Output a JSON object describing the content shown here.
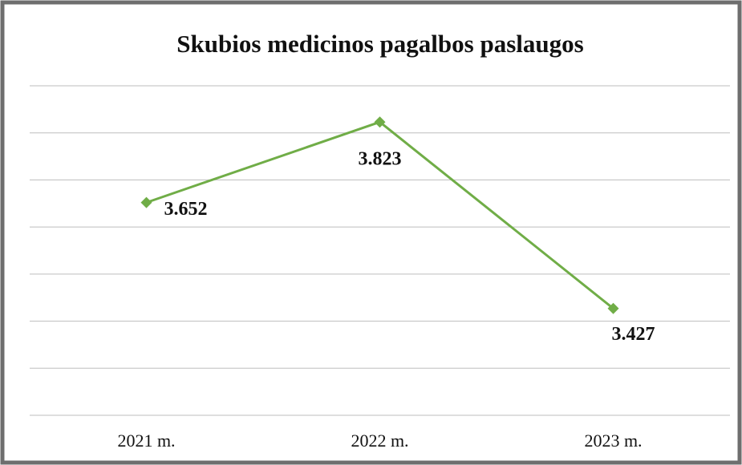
{
  "chart_data": {
    "type": "line",
    "title": "Skubios medicinos pagalbos paslaugos",
    "categories": [
      "2021 m.",
      "2022 m.",
      "2023 m."
    ],
    "series": [
      {
        "color": "#70ad47",
        "values": [
          3652,
          3823,
          3427
        ],
        "value_labels": [
          "3.652",
          "3.823",
          "3.427"
        ]
      }
    ],
    "ylim": [
      3200,
      3900
    ],
    "yticks": [
      3200,
      3300,
      3400,
      3500,
      3600,
      3700,
      3800,
      3900
    ],
    "grid": true
  }
}
